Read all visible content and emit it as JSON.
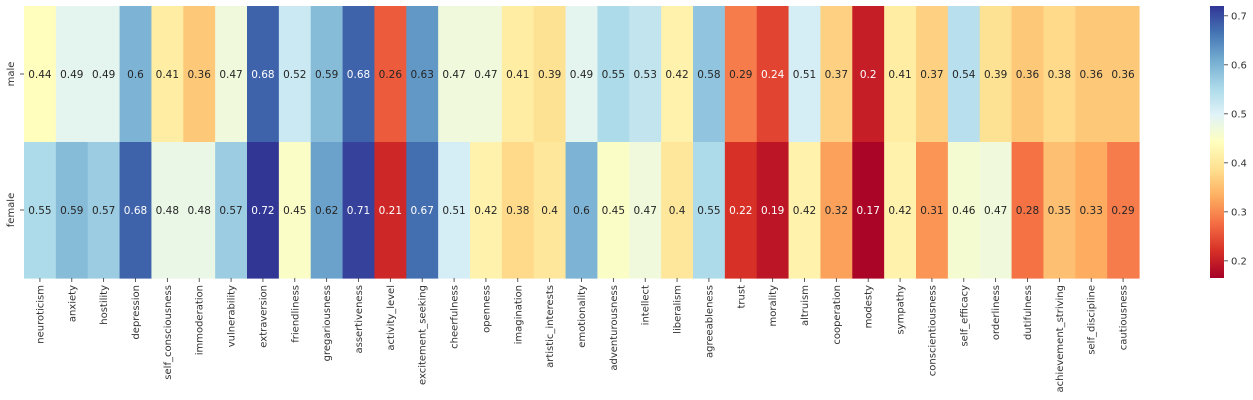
{
  "chart_data": {
    "type": "heatmap",
    "title": "",
    "xlabel": "",
    "ylabel": "",
    "rows": [
      "male",
      "female"
    ],
    "columns": [
      "neuroticism",
      "anxiety",
      "hostility",
      "depression",
      "self_consciousness",
      "immoderation",
      "vulnerability",
      "extraversion",
      "friendliness",
      "gregariousness",
      "assertiveness",
      "activity_level",
      "excitement_seeking",
      "cheerfulness",
      "openness",
      "imagination",
      "artistic_interests",
      "emotionality",
      "adventurousness",
      "intellect",
      "liberalism",
      "agreeableness",
      "trust",
      "morality",
      "altruism",
      "cooperation",
      "modesty",
      "sympathy",
      "conscientiousness",
      "self_efficacy",
      "orderliness",
      "dutifulness",
      "achievement_striving",
      "self_discipline",
      "cautiousness"
    ],
    "values": [
      [
        0.44,
        0.49,
        0.49,
        0.6,
        0.41,
        0.36,
        0.47,
        0.68,
        0.52,
        0.59,
        0.68,
        0.26,
        0.63,
        0.47,
        0.47,
        0.41,
        0.39,
        0.49,
        0.55,
        0.53,
        0.42,
        0.58,
        0.29,
        0.24,
        0.51,
        0.37,
        0.2,
        0.41,
        0.37,
        0.54,
        0.39,
        0.36,
        0.38,
        0.36,
        0.36
      ],
      [
        0.55,
        0.59,
        0.57,
        0.68,
        0.48,
        0.48,
        0.57,
        0.72,
        0.45,
        0.62,
        0.71,
        0.21,
        0.67,
        0.51,
        0.42,
        0.38,
        0.4,
        0.6,
        0.45,
        0.47,
        0.4,
        0.55,
        0.22,
        0.19,
        0.42,
        0.32,
        0.17,
        0.42,
        0.31,
        0.46,
        0.47,
        0.28,
        0.35,
        0.33,
        0.29
      ]
    ],
    "colorbar": {
      "cmap": "RdYlBu",
      "vmin": 0.165,
      "vmax": 0.72,
      "ticks": [
        0.2,
        0.3,
        0.4,
        0.5,
        0.6,
        0.7
      ]
    },
    "grid": false,
    "legend": "colorbar-right"
  }
}
